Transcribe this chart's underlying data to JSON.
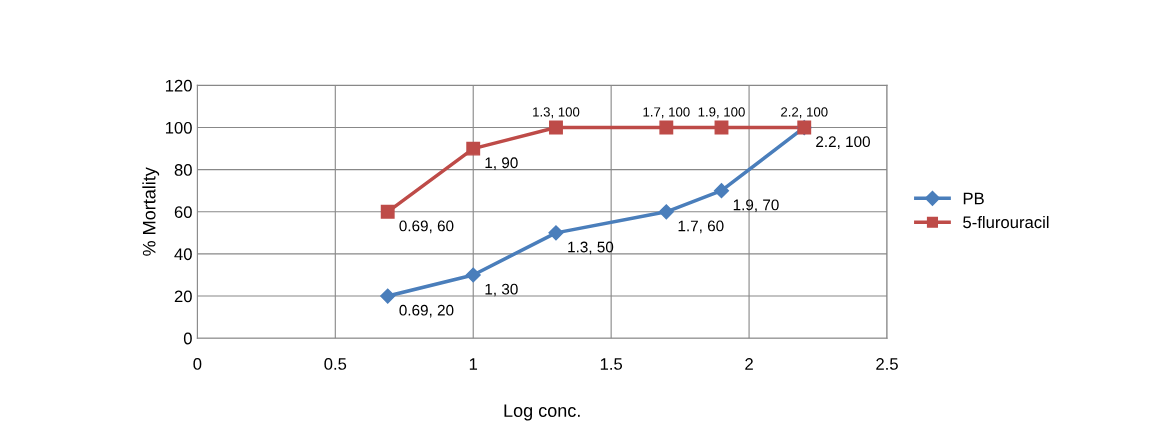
{
  "chart_data": {
    "type": "line",
    "xlabel": "Log conc.",
    "ylabel": "% Mortality",
    "xlim": [
      0,
      2.5
    ],
    "xticks": [
      0,
      0.5,
      1,
      1.5,
      2,
      2.5
    ],
    "ylim": [
      0,
      120
    ],
    "yticks": [
      0,
      20,
      40,
      60,
      80,
      100,
      120
    ],
    "grid": true,
    "legend": "right",
    "line_style": "solid",
    "series": [
      {
        "name": "PB",
        "color": "#4a7ebb",
        "marker": "diamond",
        "x": [
          0.69,
          1,
          1.3,
          1.7,
          1.9,
          2.2
        ],
        "values": [
          20,
          30,
          50,
          60,
          70,
          100
        ],
        "value_labels": [
          "0.69, 20",
          "1, 30",
          "1.3, 50",
          "1.7, 60",
          "1.9, 70",
          "2.2, 100"
        ]
      },
      {
        "name": "5-flurouracil",
        "color": "#be4b48",
        "marker": "square",
        "x": [
          0.69,
          1,
          1.3,
          1.7,
          1.9,
          2.2
        ],
        "values": [
          60,
          90,
          100,
          100,
          100,
          100
        ],
        "value_labels": [
          "0.69, 60",
          "1, 90",
          "1.3, 100",
          "1.7, 100",
          "1.9, 100",
          "2.2, 100"
        ]
      }
    ]
  }
}
